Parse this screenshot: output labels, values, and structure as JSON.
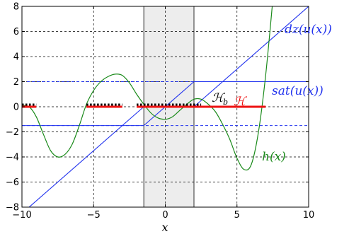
{
  "chart_data": {
    "type": "line",
    "xlabel": "x",
    "xlim": [
      -10,
      10
    ],
    "ylim": [
      -8,
      8
    ],
    "xticks": [
      -10,
      -5,
      0,
      5,
      10
    ],
    "yticks": [
      -8,
      -6,
      -4,
      -2,
      0,
      2,
      4,
      6,
      8
    ],
    "xtick_labels": [
      "−10",
      "−5",
      "0",
      "5",
      "10"
    ],
    "ytick_labels": [
      "−8",
      "−6",
      "−4",
      "−2",
      "0",
      "2",
      "4",
      "6",
      "8"
    ],
    "grid": true,
    "dead_zone_band": [
      -1.5,
      2.0
    ],
    "series": [
      {
        "name": "dz(u(x))",
        "color": "#2233ee",
        "x": [
          -10,
          -1.5,
          2.0,
          10
        ],
        "y": [
          -8.5,
          0,
          0,
          8
        ]
      },
      {
        "name": "sat(u(x))",
        "color": "#2233ee",
        "x": [
          -10,
          -1.5,
          2.0,
          10
        ],
        "y": [
          -1.5,
          -1.5,
          2.0,
          2.0
        ]
      },
      {
        "name": "h(x)",
        "color": "#1a8a1a",
        "x": [
          -10,
          -9.5,
          -9,
          -8.5,
          -8,
          -7.5,
          -7,
          -6.5,
          -6,
          -5.5,
          -5,
          -4.5,
          -4,
          -3.5,
          -3,
          -2.5,
          -2,
          -1.5,
          -1,
          -0.5,
          0,
          0.5,
          1,
          1.5,
          2,
          2.5,
          3,
          3.5,
          4,
          4.5,
          5,
          5.5,
          6,
          6.5,
          7,
          7.5
        ],
        "y": [
          0.1,
          0.0,
          -0.8,
          -2.2,
          -3.5,
          -4.0,
          -3.8,
          -3.0,
          -1.5,
          0.2,
          1.3,
          2.0,
          2.4,
          2.6,
          2.5,
          1.9,
          1.0,
          0.2,
          -0.5,
          -0.9,
          -1.0,
          -0.8,
          -0.3,
          0.2,
          0.6,
          0.6,
          0.2,
          -0.4,
          -1.4,
          -2.6,
          -4.1,
          -5.0,
          -4.6,
          -2.0,
          2.5,
          8.5
        ]
      },
      {
        "name": "H_b",
        "color": "#000000",
        "style": "dotted",
        "segments": [
          [
            -10,
            -9
          ],
          [
            -5.5,
            -3
          ],
          [
            -2,
            2.5
          ]
        ]
      },
      {
        "name": "H",
        "color": "#ee1111",
        "segments": [
          [
            -10,
            -9
          ],
          [
            -5.5,
            -3
          ],
          [
            -2,
            7
          ]
        ]
      }
    ],
    "annotations": [
      {
        "text": "dz(u(x))",
        "color": "#2233ee"
      },
      {
        "text": "sat(u(x))",
        "color": "#2233ee"
      },
      {
        "text": "h(x)",
        "color": "#1a8a1a"
      },
      {
        "text": "ℋ",
        "color": "#000000"
      },
      {
        "text": "b",
        "color": "#000000"
      },
      {
        "text": "ℋ",
        "color": "#ee1111"
      }
    ]
  }
}
